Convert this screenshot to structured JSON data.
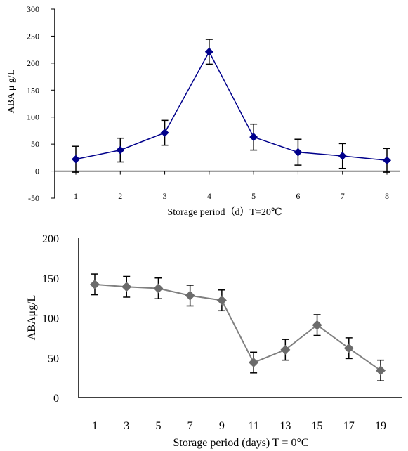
{
  "chart_data": [
    {
      "type": "line",
      "xlabel": "Storage period（d）T=20℃",
      "ylabel": "ABA μ g/L",
      "categories": [
        "1",
        "2",
        "3",
        "4",
        "5",
        "6",
        "7",
        "8"
      ],
      "ylim": [
        -50,
        300
      ],
      "yticks": [
        "-50",
        "0",
        "50",
        "100",
        "150",
        "200",
        "250",
        "300"
      ],
      "series": [
        {
          "color": "#00008b",
          "values": [
            22,
            39,
            71,
            221,
            63,
            35,
            28,
            20
          ],
          "errors": [
            24,
            22,
            23,
            23,
            24,
            24,
            23,
            22
          ]
        }
      ],
      "grid": false
    },
    {
      "type": "line",
      "xlabel": "Storage period (days) T = 0°C",
      "ylabel": "ABAμg/L",
      "categories": [
        "1",
        "3",
        "5",
        "7",
        "9",
        "11",
        "13",
        "15",
        "17",
        "19"
      ],
      "ylim": [
        0,
        200
      ],
      "yticks": [
        "0",
        "50",
        "100",
        "150",
        "200"
      ],
      "series": [
        {
          "color": "#6b6b6b",
          "values": [
            142,
            139,
            137,
            128,
            122,
            44,
            60,
            91,
            62,
            34
          ],
          "errors": [
            13,
            13,
            13,
            13,
            13,
            13,
            13,
            13,
            13,
            13
          ]
        }
      ],
      "grid": false
    }
  ]
}
